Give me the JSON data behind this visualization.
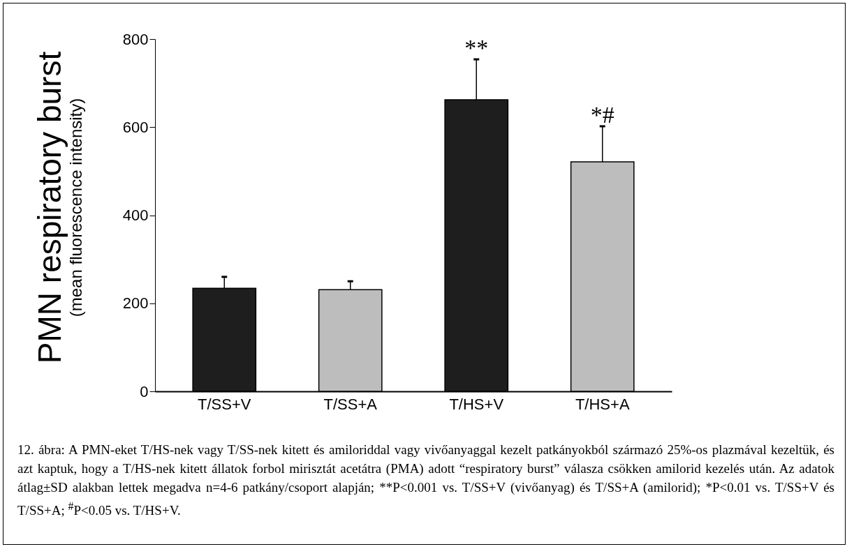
{
  "chart_data": {
    "type": "bar",
    "ylabel": "PMN respiratory burst\n(mean fluorescence intensity)",
    "categories": [
      "T/SS+V",
      "T/SS+A",
      "T/HS+V",
      "T/HS+A"
    ],
    "values": [
      234,
      231,
      662,
      521
    ],
    "colors": [
      "#1e1e1e",
      "#bdbdbd",
      "#1e1e1e",
      "#bdbdbd"
    ],
    "errors": [
      [
        234,
        260
      ],
      [
        231,
        250
      ],
      [
        662,
        754
      ],
      [
        521,
        602
      ]
    ],
    "ylim": [
      0,
      800
    ],
    "yticks": [
      0,
      200,
      400,
      600,
      800
    ],
    "grid": false,
    "annotations": [
      {
        "text": "**",
        "x": "T/HS+V",
        "y": 754
      },
      {
        "text": "*#",
        "x": "T/HS+A",
        "y": 602
      },
      "12. ábra: A PMN-eket T/HS-nek vagy T/SS-nek kitett és amiloriddal vagy vivőanyaggal kezelt patkányokból származó 25%-os plazmával kezeltük, és azt kaptuk, hogy a T/HS-nek kitett állatok forbol mirisztát acetátra (PMA) adott “respiratory burst” válasza csökken amilorid kezelés után. Az adatok átlag±SD alakban lettek megadva n=4-6 patkány/csoport alapján; **P<0.001 vs. T/SS+V (vivőanyag) és T/SS+A (amilorid); *P<0.01 vs. T/SS+V és T/SS+A; $^{#}$P<0.05 vs. T/HS+V."
    ]
  }
}
